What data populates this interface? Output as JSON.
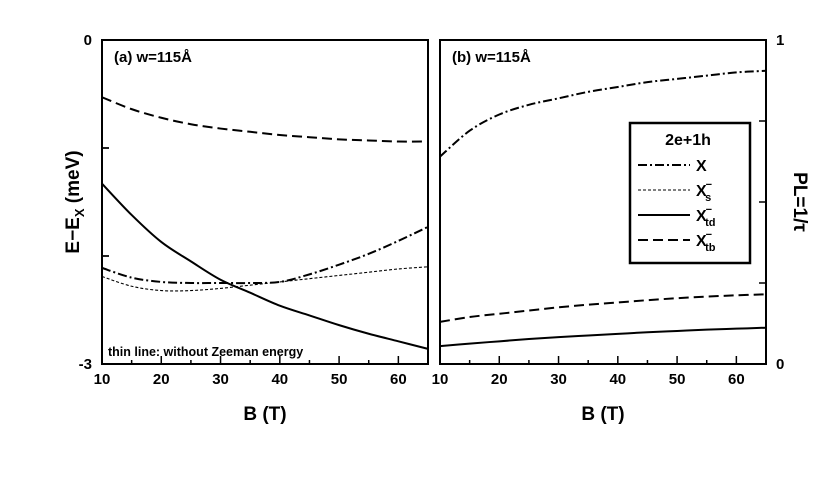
{
  "chart_data": [
    {
      "panel": "(a) w=115Å",
      "type": "line",
      "xlabel": "B (T)",
      "ylabel": "E−E",
      "ylabel_sub": "X",
      "ylabel_unit": " (meV)",
      "xlim": [
        10,
        65
      ],
      "ylim": [
        -3,
        0
      ],
      "x_ticks": [
        10,
        20,
        30,
        40,
        50,
        60
      ],
      "y_ticks": [
        {
          "value": 0,
          "label": "0"
        },
        {
          "value": -3,
          "label": "-3"
        }
      ],
      "annotation": "thin line: without Zeeman energy",
      "series": [
        {
          "key": "X",
          "style": "dashdot",
          "weight": "thick",
          "x": [
            10,
            15,
            20,
            25,
            30,
            35,
            40,
            45,
            50,
            55,
            60,
            65
          ],
          "y": [
            -2.11,
            -2.2,
            -2.24,
            -2.25,
            -2.25,
            -2.25,
            -2.24,
            -2.17,
            -2.08,
            -1.98,
            -1.86,
            -1.73
          ]
        },
        {
          "key": "Xs",
          "style": "dashed-fine",
          "weight": "thin",
          "x": [
            10,
            15,
            20,
            25,
            30,
            35,
            40,
            45,
            50,
            55,
            60,
            65
          ],
          "y": [
            -2.19,
            -2.28,
            -2.32,
            -2.32,
            -2.3,
            -2.27,
            -2.24,
            -2.21,
            -2.18,
            -2.15,
            -2.12,
            -2.1
          ]
        },
        {
          "key": "Xtd",
          "style": "solid",
          "weight": "thick",
          "x": [
            10,
            15,
            20,
            25,
            30,
            35,
            40,
            45,
            50,
            55,
            60,
            65
          ],
          "y": [
            -1.33,
            -1.62,
            -1.87,
            -2.05,
            -2.22,
            -2.34,
            -2.46,
            -2.55,
            -2.64,
            -2.72,
            -2.79,
            -2.86
          ]
        },
        {
          "key": "Xtb",
          "style": "dashed",
          "weight": "thick",
          "x": [
            10,
            15,
            20,
            25,
            30,
            35,
            40,
            45,
            50,
            55,
            60,
            65
          ],
          "y": [
            -0.53,
            -0.64,
            -0.72,
            -0.78,
            -0.82,
            -0.85,
            -0.88,
            -0.9,
            -0.92,
            -0.93,
            -0.94,
            -0.94
          ]
        }
      ]
    },
    {
      "panel": "(b) w=115Å",
      "type": "line",
      "xlabel": "B (T)",
      "ylabel": "PL=1/τ",
      "xlim": [
        10,
        65
      ],
      "ylim": [
        0,
        1
      ],
      "x_ticks": [
        10,
        20,
        30,
        40,
        50,
        60
      ],
      "y_ticks": [
        {
          "value": 0,
          "label": "0"
        },
        {
          "value": 1,
          "label": "1"
        }
      ],
      "legend": {
        "title": "2e+1h",
        "position": "right",
        "entries": [
          {
            "key": "X",
            "label": "X",
            "sub": "",
            "sup": ""
          },
          {
            "key": "Xs",
            "label": "X",
            "sub": "s",
            "sup": "−"
          },
          {
            "key": "Xtd",
            "label": "X",
            "sub": "td",
            "sup": "−"
          },
          {
            "key": "Xtb",
            "label": "X",
            "sub": "tb",
            "sup": "−"
          }
        ]
      },
      "series": [
        {
          "key": "X",
          "style": "dashdot",
          "weight": "thick",
          "x": [
            10,
            15,
            20,
            25,
            30,
            35,
            40,
            45,
            50,
            55,
            60,
            65
          ],
          "y": [
            0.64,
            0.72,
            0.77,
            0.8,
            0.82,
            0.84,
            0.855,
            0.87,
            0.88,
            0.89,
            0.9,
            0.905
          ]
        },
        {
          "key": "Xtb",
          "style": "dashed",
          "weight": "thick",
          "x": [
            10,
            15,
            20,
            25,
            30,
            35,
            40,
            45,
            50,
            55,
            60,
            65
          ],
          "y": [
            0.13,
            0.145,
            0.155,
            0.165,
            0.175,
            0.183,
            0.19,
            0.197,
            0.203,
            0.208,
            0.212,
            0.215
          ]
        },
        {
          "key": "Xtd",
          "style": "solid",
          "weight": "thick",
          "x": [
            10,
            15,
            20,
            25,
            30,
            35,
            40,
            45,
            50,
            55,
            60,
            65
          ],
          "y": [
            0.055,
            0.063,
            0.07,
            0.077,
            0.083,
            0.088,
            0.093,
            0.098,
            0.102,
            0.106,
            0.109,
            0.112
          ]
        }
      ]
    }
  ]
}
